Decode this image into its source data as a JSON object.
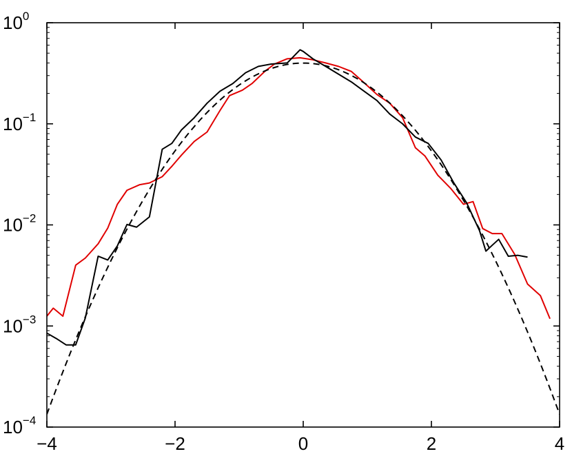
{
  "chart_data": {
    "type": "line",
    "title": "",
    "xlabel": "",
    "ylabel": "",
    "xlim": [
      -4,
      4
    ],
    "ylim": [
      0.0001,
      1
    ],
    "yscale": "log",
    "grid": false,
    "x_ticks": [
      -4,
      -2,
      0,
      2,
      4
    ],
    "x_tick_labels": [
      "−4",
      "−2",
      "0",
      "2",
      "4"
    ],
    "y_ticks": [
      0.0001,
      0.001,
      0.01,
      0.1,
      1
    ],
    "y_tick_labels": [
      {
        "base": "10",
        "exp": "−4"
      },
      {
        "base": "10",
        "exp": "−3"
      },
      {
        "base": "10",
        "exp": "−2"
      },
      {
        "base": "10",
        "exp": "−1"
      },
      {
        "base": "10",
        "exp": "0"
      }
    ],
    "series": [
      {
        "color": "#e00000",
        "style": "solid",
        "x": [
          -4.0,
          -3.9,
          -3.75,
          -3.55,
          -3.4,
          -3.2,
          -3.05,
          -2.9,
          -2.75,
          -2.55,
          -2.4,
          -2.2,
          -2.05,
          -1.9,
          -1.7,
          -1.5,
          -1.3,
          -1.15,
          -0.95,
          -0.8,
          -0.6,
          -0.45,
          -0.25,
          -0.05,
          0.15,
          0.35,
          0.55,
          0.75,
          0.95,
          1.15,
          1.35,
          1.55,
          1.75,
          1.9,
          2.1,
          2.3,
          2.5,
          2.65,
          2.8,
          2.95,
          3.1,
          3.3,
          3.5,
          3.7,
          3.85
        ],
        "y": [
          0.00125,
          0.0015,
          0.00125,
          0.004,
          0.0047,
          0.0065,
          0.0093,
          0.016,
          0.022,
          0.025,
          0.026,
          0.03,
          0.038,
          0.049,
          0.067,
          0.083,
          0.135,
          0.19,
          0.215,
          0.25,
          0.33,
          0.39,
          0.44,
          0.45,
          0.43,
          0.4,
          0.37,
          0.33,
          0.255,
          0.195,
          0.16,
          0.115,
          0.058,
          0.048,
          0.031,
          0.023,
          0.016,
          0.017,
          0.0092,
          0.0082,
          0.0082,
          0.0051,
          0.0026,
          0.002,
          0.00118
        ]
      },
      {
        "color": "#000000",
        "style": "solid",
        "x": [
          -4.0,
          -3.85,
          -3.7,
          -3.55,
          -3.4,
          -3.2,
          -3.05,
          -2.9,
          -2.75,
          -2.6,
          -2.4,
          -2.2,
          -2.05,
          -1.9,
          -1.7,
          -1.5,
          -1.3,
          -1.1,
          -0.9,
          -0.7,
          -0.5,
          -0.25,
          -0.05,
          0.0,
          0.15,
          0.35,
          0.55,
          0.75,
          0.95,
          1.15,
          1.35,
          1.55,
          1.75,
          1.95,
          2.15,
          2.35,
          2.55,
          2.75,
          2.85,
          2.95,
          3.05,
          3.2,
          3.35,
          3.5
        ],
        "y": [
          0.00085,
          0.00075,
          0.00065,
          0.00065,
          0.0012,
          0.0049,
          0.0045,
          0.0062,
          0.0101,
          0.0095,
          0.012,
          0.056,
          0.064,
          0.087,
          0.115,
          0.16,
          0.21,
          0.25,
          0.32,
          0.37,
          0.39,
          0.4,
          0.54,
          0.52,
          0.44,
          0.37,
          0.31,
          0.26,
          0.21,
          0.17,
          0.125,
          0.1,
          0.074,
          0.064,
          0.044,
          0.026,
          0.0165,
          0.0088,
          0.0055,
          0.0063,
          0.0072,
          0.0049,
          0.005,
          0.0048
        ]
      },
      {
        "color": "#000000",
        "style": "dashed",
        "function": "gaussian",
        "mean": 0,
        "std": 1,
        "x_range": [
          -4,
          4
        ]
      }
    ]
  }
}
